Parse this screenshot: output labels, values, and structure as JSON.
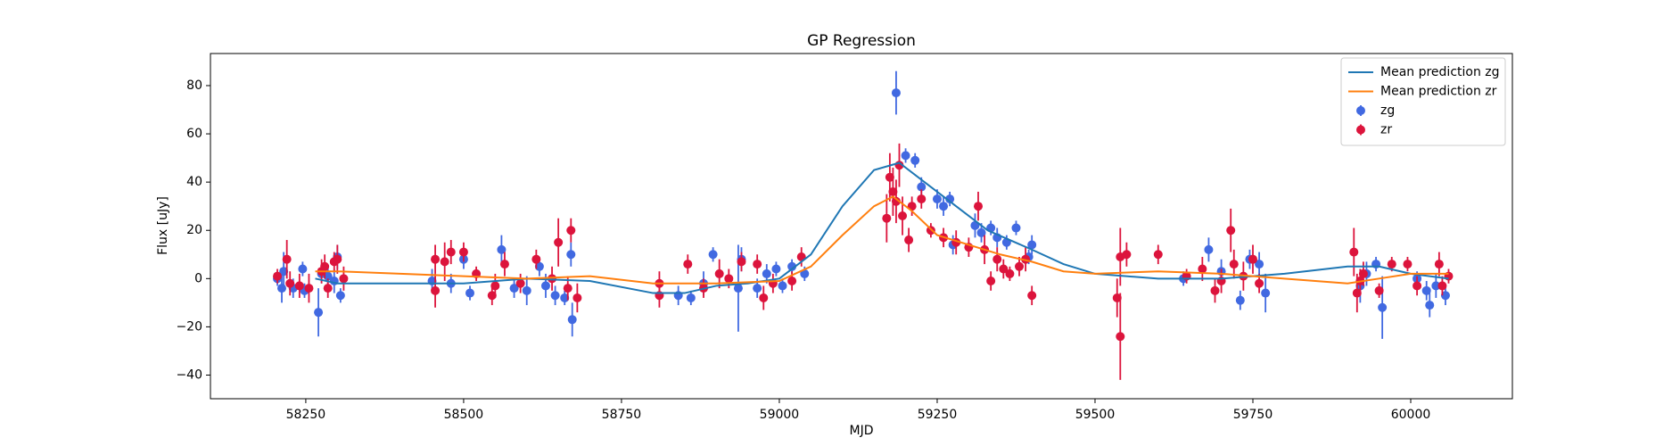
{
  "chart_data": {
    "type": "errorbar",
    "title": "GP Regression",
    "x_label": "MJD",
    "y_label": "Flux [uJy]",
    "xlim": [
      58099,
      60161
    ],
    "ylim": [
      -49.8,
      93.3
    ],
    "xticks": [
      58250,
      58500,
      58750,
      59000,
      59250,
      59500,
      59750,
      60000
    ],
    "yticks": [
      {
        "value": -40,
        "label": "−40"
      },
      {
        "value": -20,
        "label": "−20"
      },
      0,
      20,
      40,
      60,
      80
    ],
    "legend": "upper right",
    "series": [
      {
        "name": "Mean prediction zg",
        "color": "#1f77b4",
        "mode": "line",
        "x": [
          58265,
          58300,
          58400,
          58500,
          58600,
          58700,
          58800,
          58850,
          58900,
          58950,
          59000,
          59050,
          59100,
          59150,
          59190,
          59230,
          59280,
          59330,
          59400,
          59450,
          59500,
          59600,
          59700,
          59800,
          59900,
          59950,
          60000,
          60060
        ],
        "values": [
          0,
          -2,
          -2,
          -2,
          0,
          -1,
          -6,
          -6,
          -3,
          -2,
          0,
          10,
          30,
          45,
          48,
          40,
          30,
          20,
          12,
          6,
          2,
          0,
          0,
          2,
          5,
          5,
          2,
          0
        ]
      },
      {
        "name": "Mean prediction zr",
        "color": "#ff7f0e",
        "mode": "line",
        "x": [
          58265,
          58300,
          58400,
          58500,
          58600,
          58700,
          58800,
          58900,
          59000,
          59050,
          59100,
          59150,
          59180,
          59210,
          59250,
          59300,
          59350,
          59400,
          59450,
          59500,
          59600,
          59700,
          59800,
          59900,
          59950,
          60000,
          60060
        ],
        "values": [
          3,
          3,
          2,
          1,
          0,
          1,
          -2,
          -2,
          -1,
          5,
          18,
          30,
          34,
          28,
          18,
          14,
          10,
          7,
          3,
          2,
          3,
          2,
          0,
          -2,
          0,
          2,
          2
        ]
      },
      {
        "name": "zg",
        "color": "#4169e1",
        "mode": "errorbar",
        "x": [
          58205,
          58212,
          58215,
          58230,
          58245,
          58248,
          58270,
          58275,
          58285,
          58295,
          58300,
          58305,
          58450,
          58480,
          58500,
          58510,
          58560,
          58580,
          58600,
          58620,
          58630,
          58645,
          58660,
          58670,
          58672,
          58840,
          58860,
          58880,
          58895,
          58935,
          58940,
          58965,
          58980,
          58995,
          59005,
          59020,
          59040,
          59185,
          59200,
          59215,
          59225,
          59250,
          59260,
          59270,
          59275,
          59310,
          59320,
          59335,
          59345,
          59360,
          59375,
          59395,
          59400,
          59640,
          59680,
          59700,
          59730,
          59745,
          59760,
          59770,
          59920,
          59930,
          59945,
          59955,
          60010,
          60025,
          60030,
          60040,
          60055
        ],
        "values": [
          0,
          -4,
          3,
          -4,
          4,
          -5,
          -14,
          2,
          1,
          -1,
          9,
          -7,
          -1,
          -2,
          8,
          -6,
          12,
          -4,
          -5,
          5,
          -3,
          -7,
          -8,
          10,
          -17,
          -7,
          -8,
          -2,
          10,
          -4,
          8,
          -4,
          2,
          4,
          -3,
          5,
          2,
          77,
          51,
          49,
          38,
          33,
          30,
          33,
          14,
          22,
          19,
          21,
          17,
          15,
          21,
          9,
          14,
          0,
          12,
          3,
          -9,
          8,
          6,
          -6,
          -3,
          2,
          6,
          -12,
          0,
          -5,
          -11,
          -3,
          -7
        ],
        "errors": [
          3,
          6,
          8,
          4,
          3,
          3,
          10,
          4,
          4,
          5,
          5,
          3,
          5,
          4,
          4,
          3,
          6,
          4,
          6,
          4,
          5,
          4,
          3,
          5,
          7,
          4,
          3,
          5,
          3,
          18,
          5,
          4,
          4,
          3,
          3,
          3,
          3,
          9,
          3,
          3,
          4,
          4,
          4,
          3,
          4,
          5,
          4,
          3,
          4,
          3,
          3,
          3,
          4,
          3,
          5,
          5,
          4,
          4,
          5,
          8,
          7,
          5,
          3,
          13,
          3,
          4,
          5,
          5,
          4
        ]
      },
      {
        "name": "zr",
        "color": "#dc143c",
        "mode": "errorbar",
        "x": [
          58205,
          58220,
          58225,
          58240,
          58255,
          58275,
          58280,
          58285,
          58295,
          58300,
          58310,
          58455,
          58455,
          58470,
          58480,
          58500,
          58520,
          58545,
          58550,
          58565,
          58590,
          58615,
          58640,
          58650,
          58665,
          58670,
          58680,
          58810,
          58810,
          58855,
          58880,
          58905,
          58920,
          58940,
          58965,
          58975,
          58990,
          59020,
          59035,
          59170,
          59175,
          59180,
          59185,
          59190,
          59195,
          59205,
          59210,
          59225,
          59240,
          59260,
          59280,
          59300,
          59315,
          59325,
          59335,
          59345,
          59355,
          59365,
          59380,
          59390,
          59400,
          59535,
          59540,
          59540,
          59550,
          59600,
          59645,
          59670,
          59690,
          59700,
          59715,
          59720,
          59735,
          59750,
          59760,
          59910,
          59915,
          59920,
          59925,
          59950,
          59970,
          59995,
          60010,
          60045,
          60050,
          60060
        ],
        "values": [
          1,
          8,
          -2,
          -3,
          -4,
          3,
          5,
          -4,
          7,
          8,
          0,
          8,
          -5,
          7,
          11,
          11,
          2,
          -7,
          -3,
          6,
          -2,
          8,
          0,
          15,
          -4,
          20,
          -8,
          -7,
          -2,
          6,
          -4,
          2,
          0,
          7,
          6,
          -8,
          -2,
          -1,
          9,
          25,
          42,
          36,
          32,
          47,
          26,
          16,
          30,
          33,
          20,
          17,
          15,
          13,
          30,
          12,
          -1,
          8,
          4,
          2,
          5,
          8,
          -7,
          -8,
          -24,
          9,
          10,
          10,
          1,
          4,
          -5,
          -1,
          20,
          6,
          1,
          8,
          -2,
          11,
          -6,
          -1,
          2,
          -5,
          6,
          6,
          -3,
          6,
          -3,
          1
        ],
        "errors": [
          3,
          8,
          5,
          5,
          6,
          5,
          5,
          4,
          4,
          6,
          5,
          6,
          7,
          8,
          5,
          4,
          3,
          4,
          5,
          5,
          4,
          4,
          5,
          10,
          5,
          5,
          6,
          5,
          5,
          4,
          4,
          6,
          4,
          4,
          4,
          5,
          4,
          4,
          4,
          10,
          10,
          10,
          9,
          9,
          8,
          5,
          4,
          4,
          3,
          4,
          5,
          4,
          6,
          6,
          4,
          5,
          4,
          3,
          4,
          5,
          4,
          8,
          18,
          12,
          5,
          4,
          3,
          5,
          5,
          5,
          9,
          6,
          6,
          6,
          4,
          10,
          8,
          5,
          5,
          3,
          3,
          3,
          4,
          5,
          4,
          3
        ]
      }
    ]
  }
}
